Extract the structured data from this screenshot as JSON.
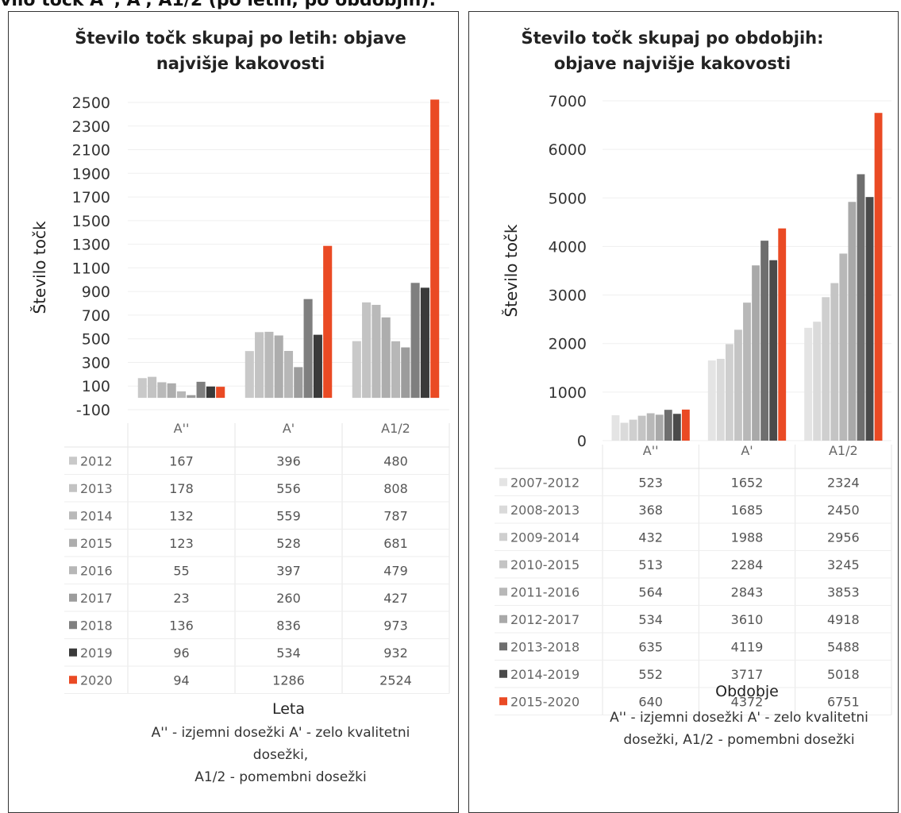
{
  "page_heading": "vilo točk A'', A', A1/2 (po letih, po obdobjih):",
  "chart_data": [
    {
      "type": "bar",
      "title_lines": [
        "Število točk skupaj po letih: objave",
        "najvišje kakovosti"
      ],
      "ylabel": "Število točk",
      "xlabel": "Leta",
      "ylim": [
        -100,
        2500
      ],
      "yticks": [
        "2500",
        "2300",
        "2100",
        "1900",
        "1700",
        "1500",
        "1300",
        "1100",
        "900",
        "700",
        "500",
        "300",
        "100",
        "-100"
      ],
      "categories": [
        "A''",
        "A'",
        "A1/2"
      ],
      "series": [
        {
          "name": "2012",
          "color": "#c9c9c9",
          "values": [
            167,
            396,
            480
          ]
        },
        {
          "name": "2013",
          "color": "#c3c3c3",
          "values": [
            178,
            556,
            808
          ]
        },
        {
          "name": "2014",
          "color": "#b9b9b9",
          "values": [
            132,
            559,
            787
          ]
        },
        {
          "name": "2015",
          "color": "#adadad",
          "values": [
            123,
            528,
            681
          ]
        },
        {
          "name": "2016",
          "color": "#b7b7b7",
          "values": [
            55,
            397,
            479
          ]
        },
        {
          "name": "2017",
          "color": "#9c9c9c",
          "values": [
            23,
            260,
            427
          ]
        },
        {
          "name": "2018",
          "color": "#7f7f7f",
          "values": [
            136,
            836,
            973
          ]
        },
        {
          "name": "2019",
          "color": "#3a3a3a",
          "values": [
            96,
            534,
            932
          ]
        },
        {
          "name": "2020",
          "color": "#ea4a24",
          "values": [
            94,
            1286,
            2524
          ]
        }
      ],
      "footnote_lines": [
        "A'' - izjemni dosežki A' - zelo kvalitetni",
        "dosežki,",
        "A1/2 - pomembni dosežki"
      ]
    },
    {
      "type": "bar",
      "title_lines": [
        "Število točk skupaj po obdobjih:",
        "objave najvišje kakovosti"
      ],
      "ylabel": "Število točk",
      "xlabel": "Obdobje",
      "ylim": [
        0,
        7000
      ],
      "yticks": [
        "7000",
        "6000",
        "5000",
        "4000",
        "3000",
        "2000",
        "1000",
        "0"
      ],
      "categories": [
        "A''",
        "A'",
        "A1/2"
      ],
      "series": [
        {
          "name": "2007-2012",
          "color": "#e4e4e4",
          "values": [
            523,
            1652,
            2324
          ]
        },
        {
          "name": "2008-2013",
          "color": "#dadada",
          "values": [
            368,
            1685,
            2450
          ]
        },
        {
          "name": "2009-2014",
          "color": "#cfcfcf",
          "values": [
            432,
            1988,
            2956
          ]
        },
        {
          "name": "2010-2015",
          "color": "#c4c4c4",
          "values": [
            513,
            2284,
            3245
          ]
        },
        {
          "name": "2011-2016",
          "color": "#b8b8b8",
          "values": [
            564,
            2843,
            3853
          ]
        },
        {
          "name": "2012-2017",
          "color": "#a9a9a9",
          "values": [
            534,
            3610,
            4918
          ]
        },
        {
          "name": "2013-2018",
          "color": "#6e6e6e",
          "values": [
            635,
            4119,
            5488
          ]
        },
        {
          "name": "2014-2019",
          "color": "#4a4a4a",
          "values": [
            552,
            3717,
            5018
          ]
        },
        {
          "name": "2015-2020",
          "color": "#ea4a24",
          "values": [
            640,
            4372,
            6751
          ]
        }
      ],
      "footnote_lines": [
        "A'' - izjemni dosežki A' - zelo kvalitetni",
        "dosežki,   A1/2 - pomembni dosežki"
      ]
    }
  ]
}
